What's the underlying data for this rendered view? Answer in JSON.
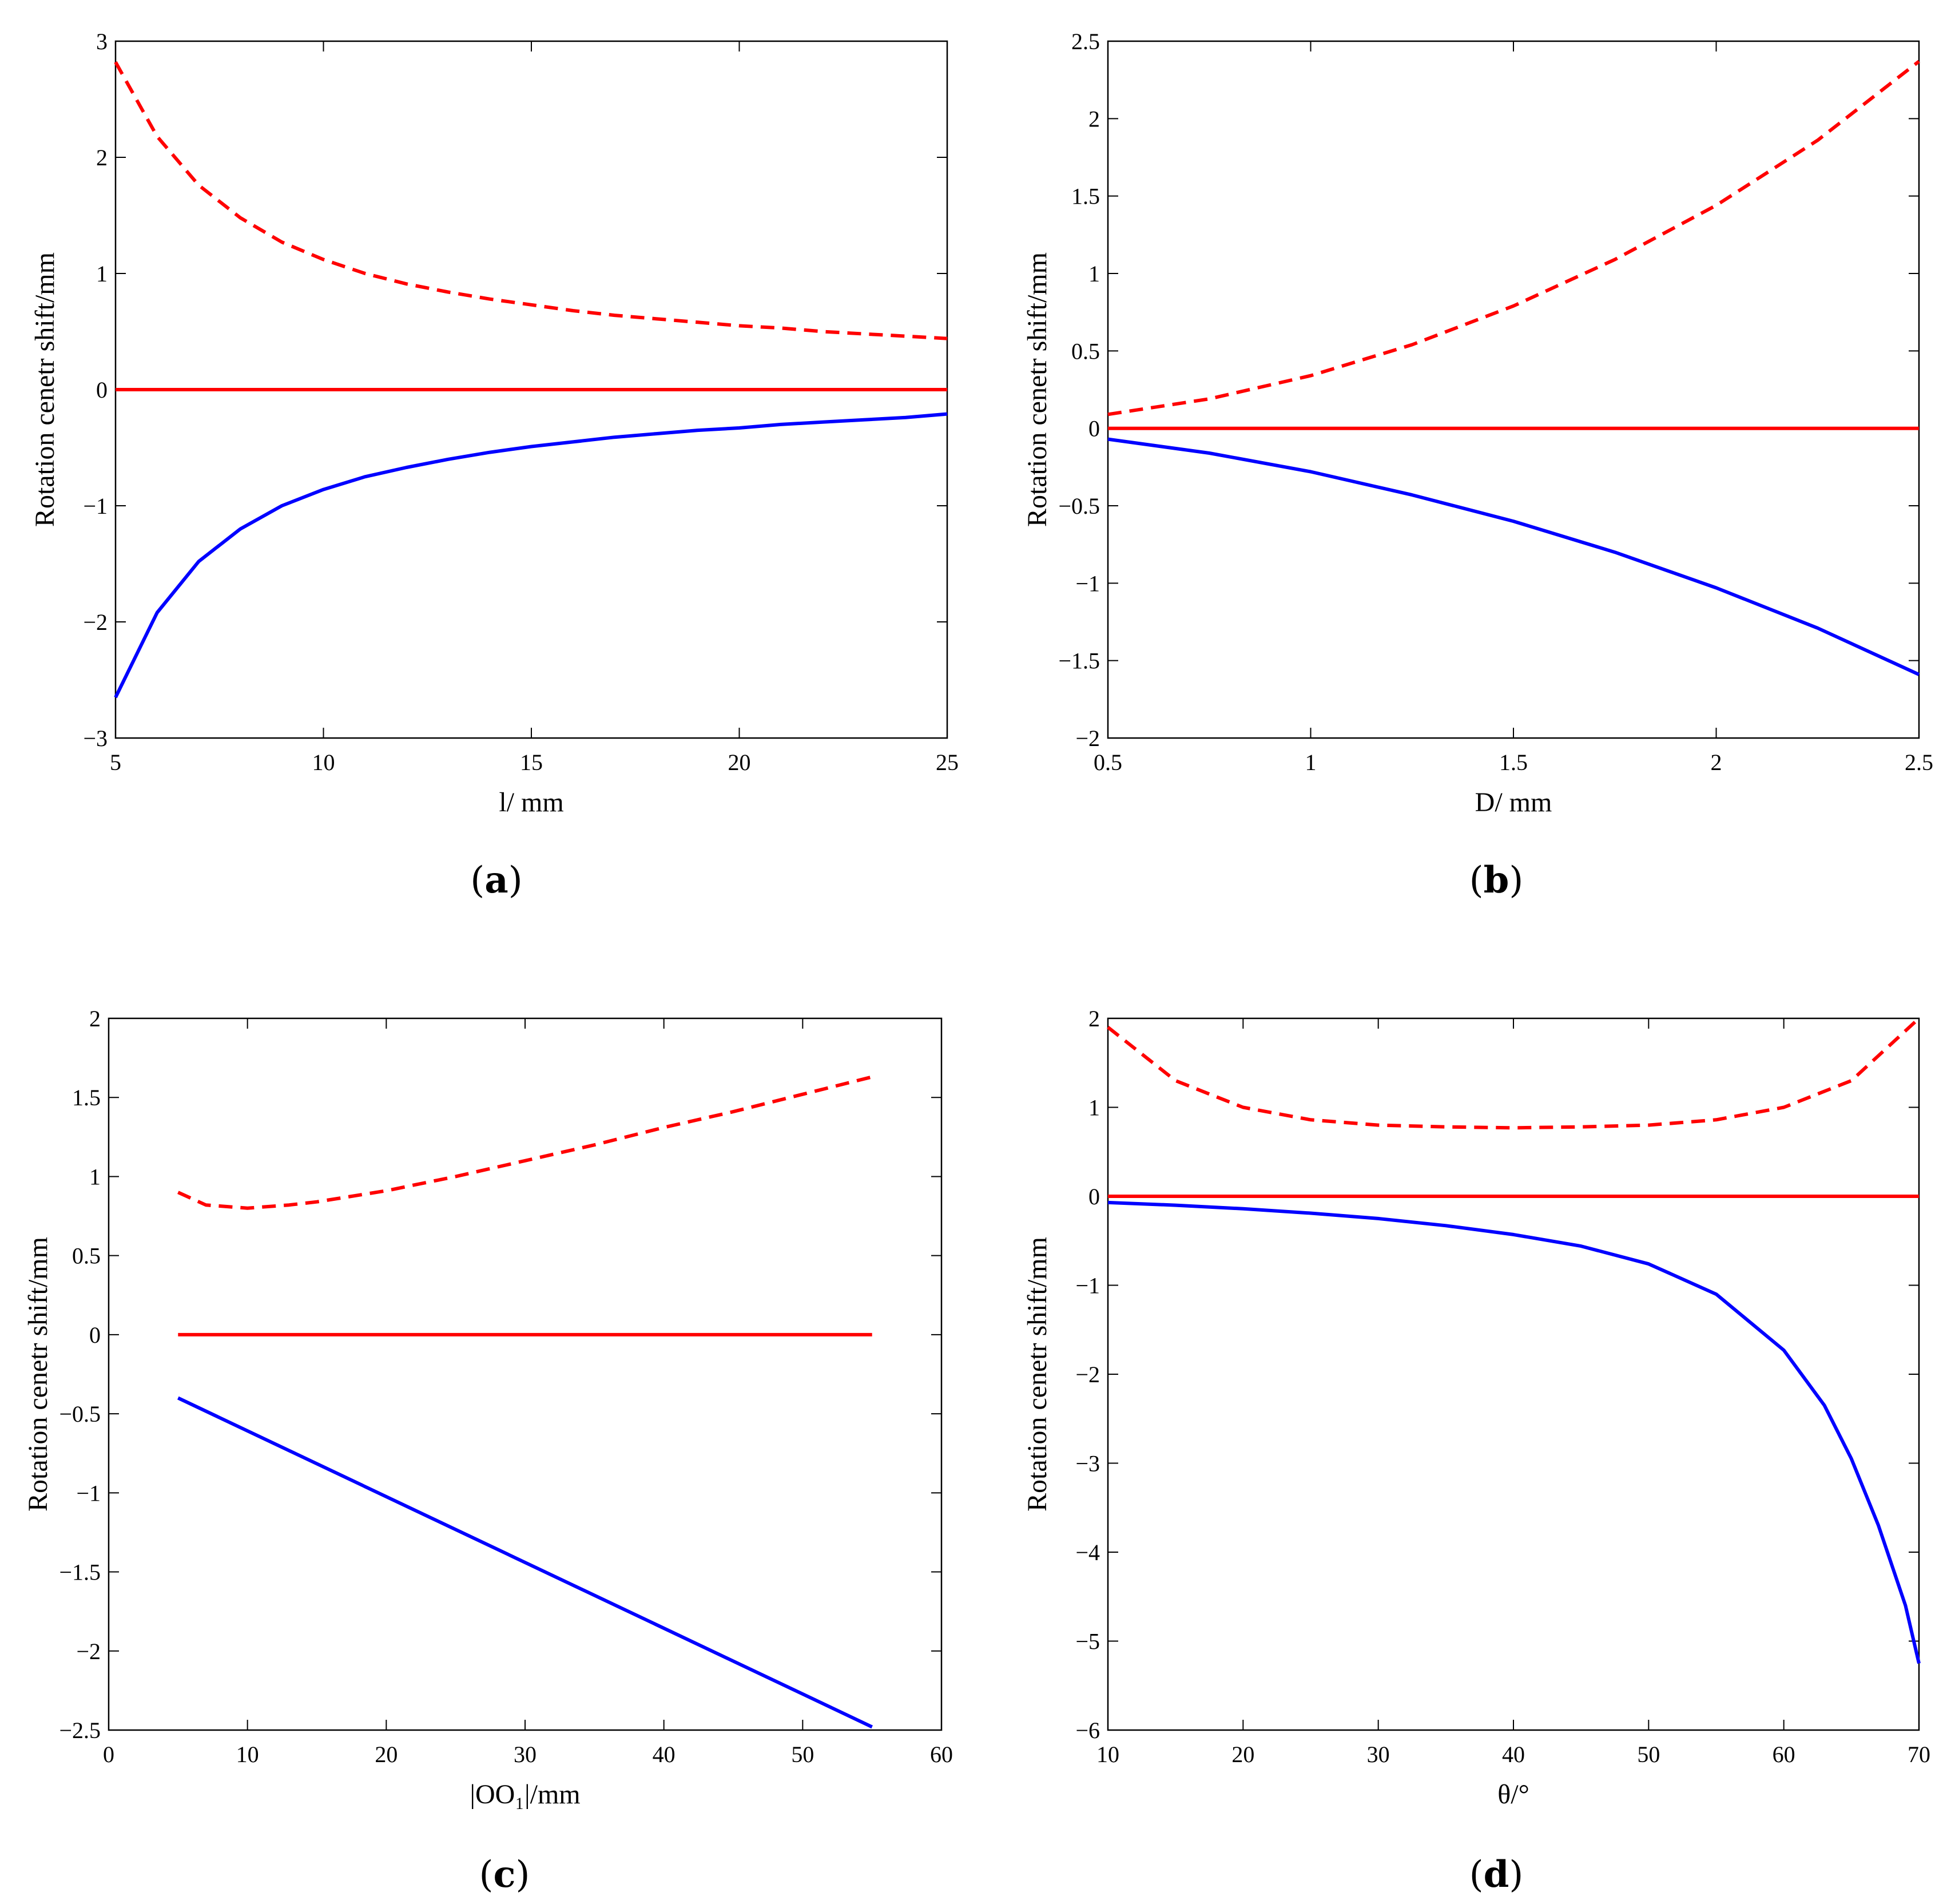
{
  "figure": {
    "colors": {
      "lower_line": "#0000ff",
      "upper_dashed_line": "#ff0000",
      "zero_line": "#ff0000",
      "axes": "#000000"
    }
  },
  "chart_data": [
    {
      "type": "line",
      "caption_letter": "a",
      "xlabel": "l/ mm",
      "ylabel": "Rotation cenetr shift/mm",
      "xlim": [
        5,
        25
      ],
      "ylim": [
        -3,
        3
      ],
      "xticks": [
        5,
        10,
        15,
        20,
        25
      ],
      "yticks": [
        -3,
        -2,
        -1,
        0,
        1,
        2,
        3
      ],
      "xtick_labels": [
        "5",
        "10",
        "15",
        "20",
        "25"
      ],
      "ytick_labels": [
        "−3",
        "−2",
        "−1",
        "0",
        "1",
        "2",
        "3"
      ],
      "series": [
        {
          "name": "upper (dashed)",
          "style": "dashed",
          "color": "#ff0000",
          "x": [
            5,
            6,
            7,
            8,
            9,
            10,
            11,
            12,
            13,
            14,
            15,
            16,
            17,
            18,
            19,
            20,
            21,
            22,
            23,
            24,
            25
          ],
          "y": [
            2.82,
            2.18,
            1.76,
            1.48,
            1.27,
            1.12,
            1.0,
            0.91,
            0.84,
            0.78,
            0.73,
            0.68,
            0.64,
            0.61,
            0.58,
            0.55,
            0.53,
            0.5,
            0.48,
            0.46,
            0.44
          ]
        },
        {
          "name": "zero",
          "style": "solid",
          "color": "#ff0000",
          "x": [
            5,
            25
          ],
          "y": [
            0,
            0
          ]
        },
        {
          "name": "lower (solid)",
          "style": "solid",
          "color": "#0000ff",
          "x": [
            5,
            6,
            7,
            8,
            9,
            10,
            11,
            12,
            13,
            14,
            15,
            16,
            17,
            18,
            19,
            20,
            21,
            22,
            23,
            24,
            25
          ],
          "y": [
            -2.65,
            -1.92,
            -1.48,
            -1.2,
            -1.0,
            -0.86,
            -0.75,
            -0.67,
            -0.6,
            -0.54,
            -0.49,
            -0.45,
            -0.41,
            -0.38,
            -0.35,
            -0.33,
            -0.3,
            -0.28,
            -0.26,
            -0.24,
            -0.21
          ]
        }
      ]
    },
    {
      "type": "line",
      "caption_letter": "b",
      "xlabel": "D/ mm",
      "ylabel": "Rotation cenetr shift/mm",
      "xlim": [
        0.5,
        2.5
      ],
      "ylim": [
        -2,
        2.5
      ],
      "xticks": [
        0.5,
        1,
        1.5,
        2,
        2.5
      ],
      "yticks": [
        -2,
        -1.5,
        -1,
        -0.5,
        0,
        0.5,
        1,
        1.5,
        2,
        2.5
      ],
      "xtick_labels": [
        "0.5",
        "1",
        "1.5",
        "2",
        "2.5"
      ],
      "ytick_labels": [
        "−2",
        "−1.5",
        "−1",
        "−0.5",
        "0",
        "0.5",
        "1",
        "1.5",
        "2",
        "2.5"
      ],
      "series": [
        {
          "name": "upper (dashed)",
          "style": "dashed",
          "color": "#ff0000",
          "x": [
            0.5,
            0.75,
            1.0,
            1.25,
            1.5,
            1.75,
            2.0,
            2.25,
            2.5
          ],
          "y": [
            0.09,
            0.19,
            0.34,
            0.54,
            0.79,
            1.09,
            1.44,
            1.86,
            2.37
          ]
        },
        {
          "name": "zero",
          "style": "solid",
          "color": "#ff0000",
          "x": [
            0.5,
            2.5
          ],
          "y": [
            0,
            0
          ]
        },
        {
          "name": "lower (solid)",
          "style": "solid",
          "color": "#0000ff",
          "x": [
            0.5,
            0.75,
            1.0,
            1.25,
            1.5,
            1.75,
            2.0,
            2.25,
            2.5
          ],
          "y": [
            -0.07,
            -0.16,
            -0.28,
            -0.43,
            -0.6,
            -0.8,
            -1.03,
            -1.29,
            -1.59
          ]
        }
      ]
    },
    {
      "type": "line",
      "caption_letter": "c",
      "xlabel": "|OO₁|/mm",
      "ylabel": "Rotation cenetr shift/mm",
      "xlim": [
        0,
        60
      ],
      "ylim": [
        -2.5,
        2
      ],
      "xticks": [
        0,
        10,
        20,
        30,
        40,
        50,
        60
      ],
      "yticks": [
        -2.5,
        -2,
        -1.5,
        -1,
        -0.5,
        0,
        0.5,
        1,
        1.5,
        2
      ],
      "xtick_labels": [
        "0",
        "10",
        "20",
        "30",
        "40",
        "50",
        "60"
      ],
      "ytick_labels": [
        "−2.5",
        "−2",
        "−1.5",
        "−1",
        "−0.5",
        "0",
        "0.5",
        "1",
        "1.5",
        "2"
      ],
      "series": [
        {
          "name": "upper (dashed)",
          "style": "dashed",
          "color": "#ff0000",
          "x": [
            5,
            7,
            10,
            13,
            15,
            20,
            25,
            30,
            35,
            40,
            45,
            50,
            55
          ],
          "y": [
            0.9,
            0.82,
            0.8,
            0.82,
            0.84,
            0.91,
            1.0,
            1.1,
            1.2,
            1.31,
            1.41,
            1.52,
            1.63
          ]
        },
        {
          "name": "zero",
          "style": "solid",
          "color": "#ff0000",
          "x": [
            5,
            55
          ],
          "y": [
            0,
            0
          ]
        },
        {
          "name": "lower (solid)",
          "style": "solid",
          "color": "#0000ff",
          "x": [
            5,
            55
          ],
          "y": [
            -0.4,
            -2.48
          ]
        }
      ]
    },
    {
      "type": "line",
      "caption_letter": "d",
      "xlabel": "θ/°",
      "ylabel": "Rotation cenetr shift/mm",
      "xlim": [
        10,
        70
      ],
      "ylim": [
        -6,
        2
      ],
      "xticks": [
        10,
        20,
        30,
        40,
        50,
        60,
        70
      ],
      "yticks": [
        -6,
        -5,
        -4,
        -3,
        -2,
        -1,
        0,
        1,
        2
      ],
      "xtick_labels": [
        "10",
        "20",
        "30",
        "40",
        "50",
        "60",
        "70"
      ],
      "ytick_labels": [
        "−6",
        "−5",
        "−4",
        "−3",
        "−2",
        "−1",
        "0",
        "1",
        "2"
      ],
      "series": [
        {
          "name": "upper (dashed)",
          "style": "dashed",
          "color": "#ff0000",
          "x": [
            10,
            15,
            20,
            25,
            30,
            35,
            40,
            45,
            50,
            55,
            60,
            65,
            70
          ],
          "y": [
            1.9,
            1.3,
            1.0,
            0.86,
            0.8,
            0.78,
            0.77,
            0.78,
            0.8,
            0.86,
            1.0,
            1.3,
            2.0
          ]
        },
        {
          "name": "zero",
          "style": "solid",
          "color": "#ff0000",
          "x": [
            10,
            70
          ],
          "y": [
            0,
            0
          ]
        },
        {
          "name": "lower (solid)",
          "style": "solid",
          "color": "#0000ff",
          "x": [
            10,
            15,
            20,
            25,
            30,
            35,
            40,
            45,
            50,
            55,
            60,
            63,
            65,
            67,
            69,
            70
          ],
          "y": [
            -0.07,
            -0.1,
            -0.14,
            -0.19,
            -0.25,
            -0.33,
            -0.43,
            -0.56,
            -0.76,
            -1.1,
            -1.73,
            -2.35,
            -2.95,
            -3.7,
            -4.6,
            -5.25
          ]
        }
      ]
    }
  ]
}
